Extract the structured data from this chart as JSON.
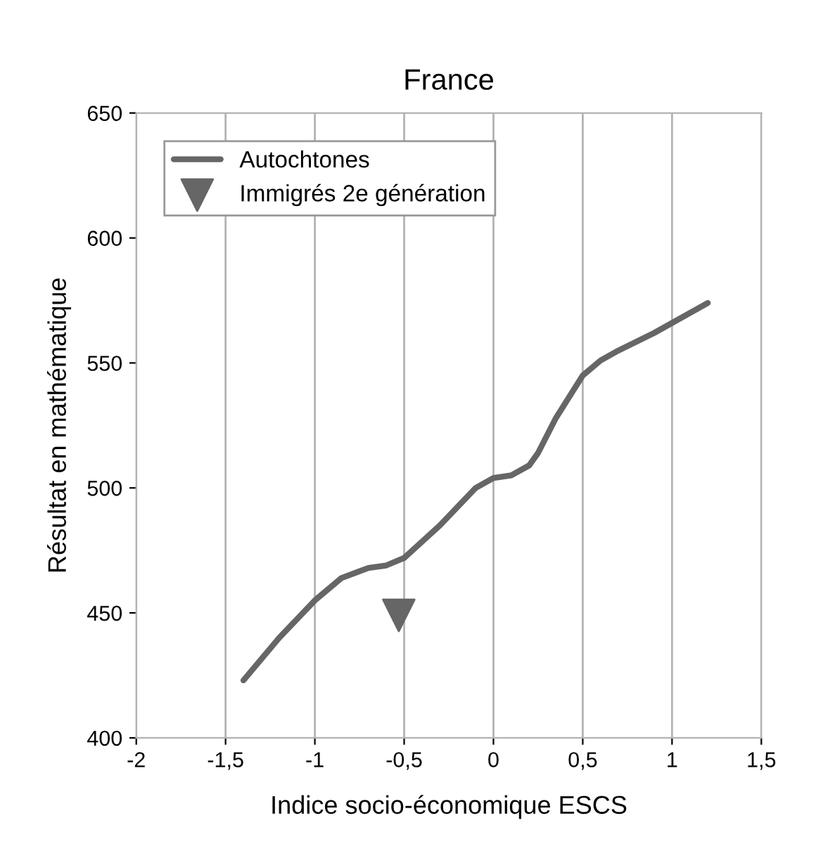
{
  "chart_data": {
    "type": "line",
    "title": "France",
    "xlabel": "Indice socio-économique ESCS",
    "ylabel": "Résultat en mathématique",
    "series": [
      {
        "name": "Autochtones",
        "color": "#666666",
        "marker": "none",
        "x": [
          -1.4,
          -1.2,
          -1.0,
          -0.85,
          -0.7,
          -0.6,
          -0.5,
          -0.3,
          -0.1,
          0.0,
          0.1,
          0.2,
          0.25,
          0.35,
          0.5,
          0.6,
          0.7,
          0.9,
          1.2
        ],
        "values": [
          423,
          440,
          455,
          464,
          468,
          469,
          472,
          485,
          500,
          504,
          505,
          509,
          514,
          528,
          545,
          551,
          555,
          562,
          574
        ]
      },
      {
        "name": "Immigrés 2e génération",
        "type": "scatter",
        "color": "#666666",
        "marker": "triangle",
        "x": [
          -0.53
        ],
        "values": [
          449
        ]
      }
    ],
    "xlim": [
      -2,
      1.5
    ],
    "xticks": [
      -2,
      {
        "value": -1.5,
        "label": "-1,5"
      },
      -1,
      {
        "value": -0.5,
        "label": "-0,5"
      },
      0,
      {
        "value": 0.5,
        "label": "0,5"
      },
      1,
      {
        "value": 1.5,
        "label": "1,5"
      }
    ],
    "ylim": [
      400,
      650
    ],
    "yticks": [
      400,
      450,
      500,
      550,
      600,
      650
    ],
    "grid": "x",
    "legend": "top left"
  }
}
